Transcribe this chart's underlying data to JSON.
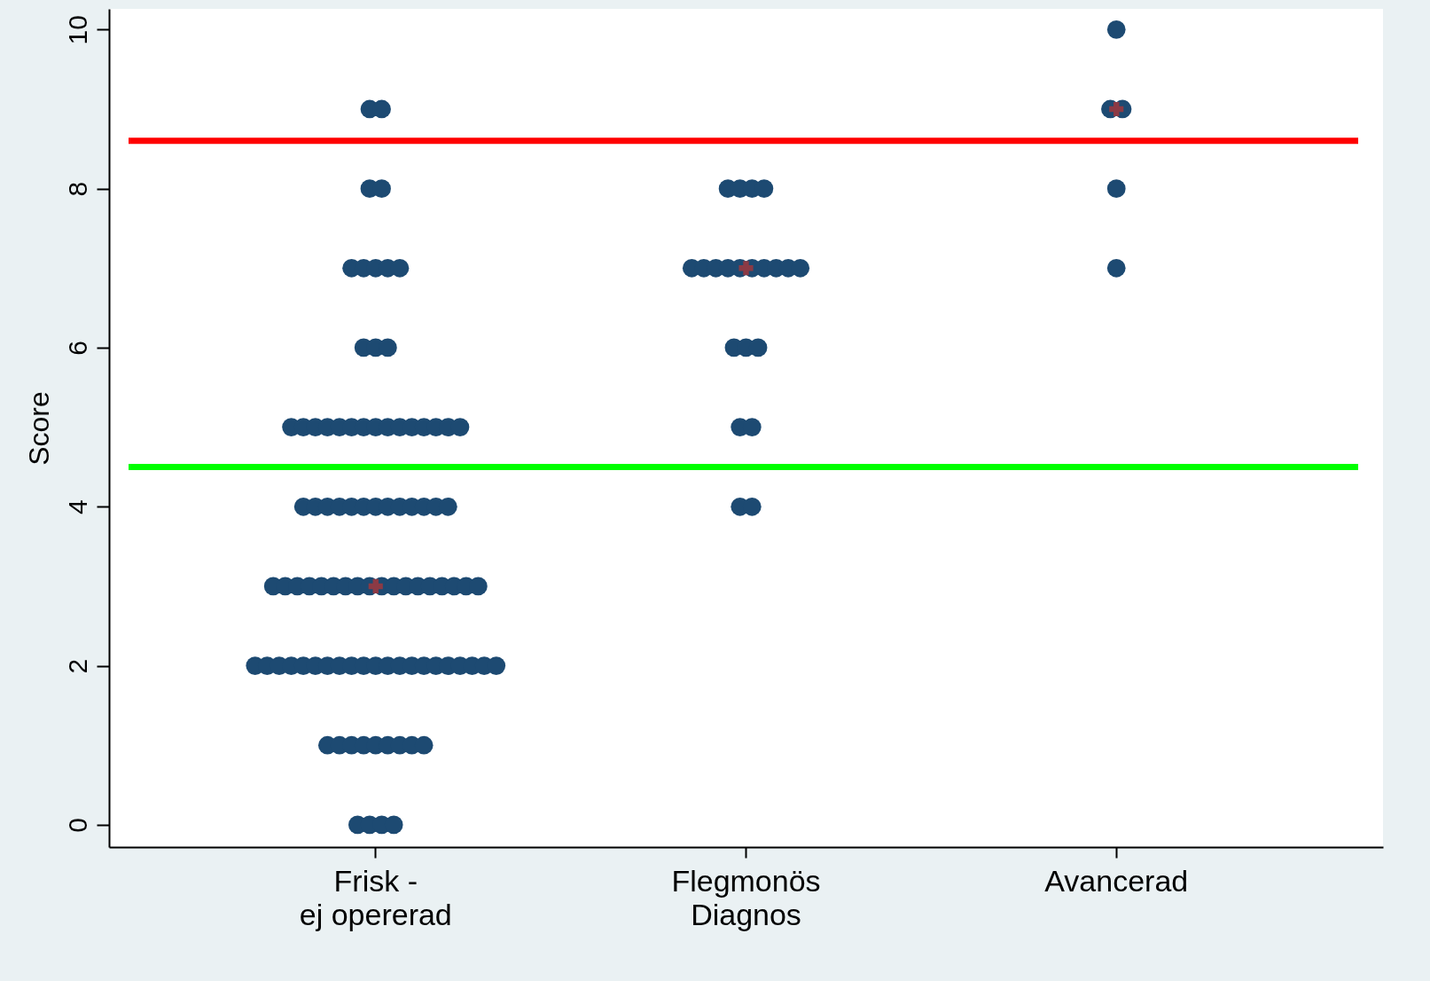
{
  "chart_data": {
    "type": "scatter",
    "ylabel": "Score",
    "categories": [
      "Frisk -\nej opererad",
      "Flegmonös\nDiagnos",
      "Avancerad"
    ],
    "ylim": [
      -0.28,
      10.26
    ],
    "yticks": [
      0,
      2,
      4,
      6,
      8,
      10
    ],
    "grid": false,
    "series": [
      {
        "marker": "circle",
        "color": "#1d4a72",
        "x": [
          "Frisk -\nej opererad",
          "Frisk -\nej opererad",
          "Frisk -\nej opererad",
          "Frisk -\nej opererad",
          "Frisk -\nej opererad",
          "Frisk -\nej opererad",
          "Frisk -\nej opererad",
          "Frisk -\nej opererad",
          "Frisk -\nej opererad",
          "Frisk -\nej opererad",
          "Frisk -\nej opererad",
          "Frisk -\nej opererad",
          "Frisk -\nej opererad",
          "Frisk -\nej opererad",
          "Frisk -\nej opererad",
          "Frisk -\nej opererad",
          "Frisk -\nej opererad",
          "Frisk -\nej opererad",
          "Frisk -\nej opererad",
          "Frisk -\nej opererad",
          "Frisk -\nej opererad",
          "Frisk -\nej opererad",
          "Frisk -\nej opererad",
          "Frisk -\nej opererad",
          "Frisk -\nej opererad",
          "Frisk -\nej opererad",
          "Frisk -\nej opererad",
          "Frisk -\nej opererad",
          "Frisk -\nej opererad",
          "Frisk -\nej opererad",
          "Frisk -\nej opererad",
          "Frisk -\nej opererad",
          "Frisk -\nej opererad",
          "Frisk -\nej opererad",
          "Frisk -\nej opererad",
          "Frisk -\nej opererad",
          "Frisk -\nej opererad",
          "Frisk -\nej opererad",
          "Frisk -\nej opererad",
          "Frisk -\nej opererad",
          "Frisk -\nej opererad",
          "Frisk -\nej opererad",
          "Frisk -\nej opererad",
          "Frisk -\nej opererad",
          "Frisk -\nej opererad",
          "Frisk -\nej opererad",
          "Frisk -\nej opererad",
          "Frisk -\nej opererad",
          "Frisk -\nej opererad",
          "Frisk -\nej opererad",
          "Frisk -\nej opererad",
          "Frisk -\nej opererad",
          "Frisk -\nej opererad",
          "Frisk -\nej opererad",
          "Frisk -\nej opererad",
          "Frisk -\nej opererad",
          "Frisk -\nej opererad",
          "Frisk -\nej opererad",
          "Frisk -\nej opererad",
          "Frisk -\nej opererad",
          "Frisk -\nej opererad",
          "Frisk -\nej opererad",
          "Frisk -\nej opererad",
          "Frisk -\nej opererad",
          "Frisk -\nej opererad",
          "Frisk -\nej opererad",
          "Frisk -\nej opererad",
          "Frisk -\nej opererad",
          "Frisk -\nej opererad",
          "Frisk -\nej opererad",
          "Frisk -\nej opererad",
          "Frisk -\nej opererad",
          "Frisk -\nej opererad",
          "Frisk -\nej opererad",
          "Frisk -\nej opererad",
          "Frisk -\nej opererad",
          "Frisk -\nej opererad",
          "Frisk -\nej opererad",
          "Frisk -\nej opererad",
          "Frisk -\nej opererad",
          "Frisk -\nej opererad",
          "Frisk -\nej opererad",
          "Frisk -\nej opererad",
          "Frisk -\nej opererad",
          "Frisk -\nej opererad",
          "Frisk -\nej opererad",
          "Frisk -\nej opererad",
          "Frisk -\nej opererad",
          "Frisk -\nej opererad",
          "Frisk -\nej opererad",
          "Frisk -\nej opererad",
          "Frisk -\nej opererad",
          "Flegmonös\nDiagnos",
          "Flegmonös\nDiagnos",
          "Flegmonös\nDiagnos",
          "Flegmonös\nDiagnos",
          "Flegmonös\nDiagnos",
          "Flegmonös\nDiagnos",
          "Flegmonös\nDiagnos",
          "Flegmonös\nDiagnos",
          "Flegmonös\nDiagnos",
          "Flegmonös\nDiagnos",
          "Flegmonös\nDiagnos",
          "Flegmonös\nDiagnos",
          "Flegmonös\nDiagnos",
          "Flegmonös\nDiagnos",
          "Flegmonös\nDiagnos",
          "Flegmonös\nDiagnos",
          "Flegmonös\nDiagnos",
          "Flegmonös\nDiagnos",
          "Flegmonös\nDiagnos",
          "Flegmonös\nDiagnos",
          "Flegmonös\nDiagnos",
          "Avancerad",
          "Avancerad",
          "Avancerad",
          "Avancerad",
          "Avancerad"
        ],
        "values": [
          0,
          0,
          0,
          0,
          1,
          1,
          1,
          1,
          1,
          1,
          1,
          1,
          1,
          2,
          2,
          2,
          2,
          2,
          2,
          2,
          2,
          2,
          2,
          2,
          2,
          2,
          2,
          2,
          2,
          2,
          2,
          2,
          2,
          2,
          3,
          3,
          3,
          3,
          3,
          3,
          3,
          3,
          3,
          3,
          3,
          3,
          3,
          3,
          3,
          3,
          3,
          3,
          4,
          4,
          4,
          4,
          4,
          4,
          4,
          4,
          4,
          4,
          4,
          4,
          4,
          5,
          5,
          5,
          5,
          5,
          5,
          5,
          5,
          5,
          5,
          5,
          5,
          5,
          5,
          5,
          6,
          6,
          6,
          7,
          7,
          7,
          7,
          7,
          8,
          8,
          9,
          9,
          4,
          4,
          5,
          5,
          6,
          6,
          6,
          7,
          7,
          7,
          7,
          7,
          7,
          7,
          7,
          7,
          7,
          8,
          8,
          8,
          8,
          7,
          8,
          9,
          9,
          10
        ]
      },
      {
        "marker": "cross",
        "color": "#8b3a45",
        "x": [
          "Frisk -\nej opererad",
          "Flegmonös\nDiagnos",
          "Avancerad"
        ],
        "values": [
          3,
          7,
          9
        ]
      }
    ],
    "ref_lines": [
      {
        "axis": "y",
        "value": 8.6,
        "color": "#ff0000"
      },
      {
        "axis": "y",
        "value": 4.5,
        "color": "#00ff00"
      }
    ]
  }
}
